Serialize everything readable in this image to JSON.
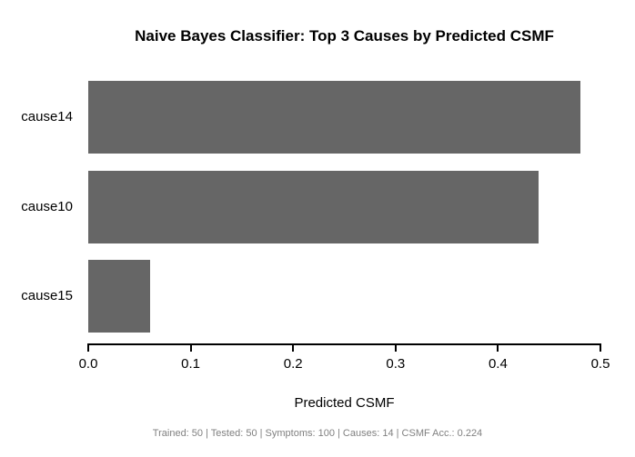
{
  "chart_data": {
    "type": "bar",
    "orientation": "horizontal",
    "title": "Naive Bayes Classifier: Top 3 Causes by Predicted CSMF",
    "categories": [
      "cause14",
      "cause10",
      "cause15"
    ],
    "values": [
      0.48,
      0.44,
      0.06
    ],
    "xlabel": "Predicted CSMF",
    "ylabel": "",
    "xlim": [
      0,
      0.5
    ],
    "xticks": [
      0.0,
      0.1,
      0.2,
      0.3,
      0.4,
      0.5
    ],
    "xtick_labels": [
      "0.0",
      "0.1",
      "0.2",
      "0.3",
      "0.4",
      "0.5"
    ],
    "grid": false,
    "legend": "none",
    "bar_color": "#666666",
    "background_color": "#ffffff",
    "footer": "Trained: 50 | Tested: 50 | Symptoms: 100 | Causes: 14 | CSMF Acc.: 0.224"
  }
}
